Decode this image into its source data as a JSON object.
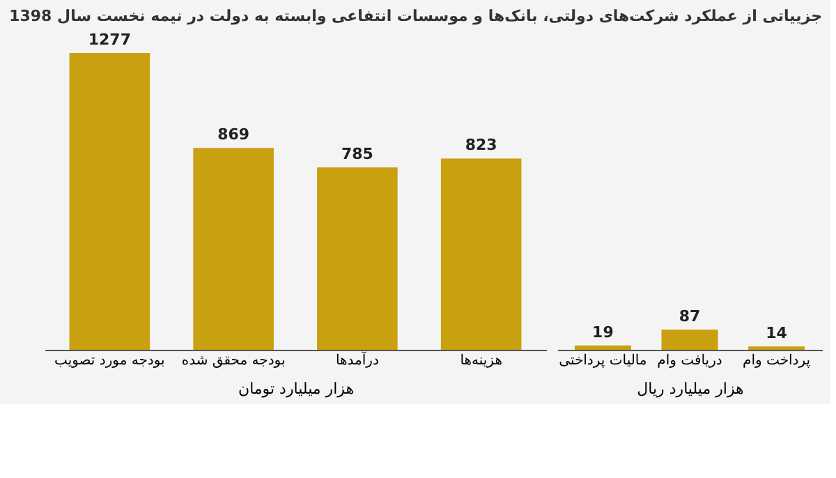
{
  "chart_data": [
    {
      "type": "bar",
      "title": "جزییاتی از عملکرد شرکت‌های دولتی، بانک‌ها و موسسات انتفاعی وابسته به دولت در نیمه نخست سال 1398",
      "categories": [
        "بودجه مورد تصویب",
        "بودجه محقق شده",
        "درآمدها",
        "هزینه‌ها"
      ],
      "values": [
        1277,
        869,
        785,
        823
      ],
      "color": "#c9a010",
      "xlabel": "هزار میلیارد تومان",
      "data_labels": true,
      "tick_labels": "x"
    },
    {
      "type": "bar",
      "categories": [
        "مالیات پرداختی",
        "دریافت وام",
        "پرداخت وام"
      ],
      "values": [
        19,
        87,
        14
      ],
      "color": "#c9a010",
      "xlabel": "هزار میلیارد ریال",
      "data_labels": true,
      "tick_labels": "x"
    }
  ]
}
